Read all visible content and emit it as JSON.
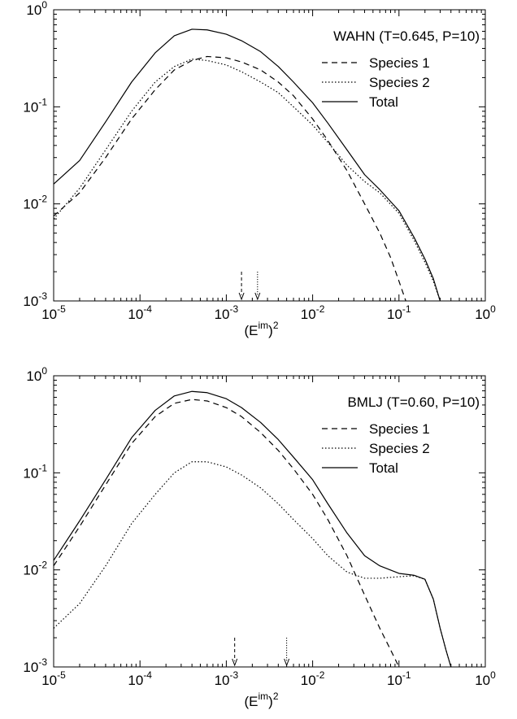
{
  "chart_data": [
    {
      "type": "line",
      "title": "WAHN (T=0.645, P=10)",
      "xlabel": "(E^im)^2",
      "xlabel_base": "(E",
      "xlabel_sup": "im",
      "xlabel_close": ")",
      "xlabel_exp": "2",
      "xscale": "log",
      "yscale": "log",
      "xlim": [
        1e-05,
        1
      ],
      "ylim": [
        0.001,
        1
      ],
      "xticks": [
        {
          "value": 1e-05,
          "base": "10",
          "exp": "-5"
        },
        {
          "value": 0.0001,
          "base": "10",
          "exp": "-4"
        },
        {
          "value": 0.001,
          "base": "10",
          "exp": "-3"
        },
        {
          "value": 0.01,
          "base": "10",
          "exp": "-2"
        },
        {
          "value": 0.1,
          "base": "10",
          "exp": "-1"
        },
        {
          "value": 1,
          "base": "10",
          "exp": "0"
        }
      ],
      "yticks": [
        {
          "value": 0.001,
          "base": "10",
          "exp": "-3"
        },
        {
          "value": 0.01,
          "base": "10",
          "exp": "-2"
        },
        {
          "value": 0.1,
          "base": "10",
          "exp": "-1"
        },
        {
          "value": 1,
          "base": "10",
          "exp": "0"
        }
      ],
      "legend_position": "top-right",
      "series": [
        {
          "name": "Species 1",
          "style": "dashed",
          "x": [
            1e-05,
            2e-05,
            4e-05,
            8e-05,
            0.00015,
            0.00025,
            0.0004,
            0.0006,
            0.001,
            0.0015,
            0.0025,
            0.004,
            0.006,
            0.01,
            0.015,
            0.025,
            0.04,
            0.06,
            0.08,
            0.1,
            0.12
          ],
          "y": [
            0.0075,
            0.013,
            0.03,
            0.075,
            0.15,
            0.24,
            0.3,
            0.33,
            0.32,
            0.29,
            0.24,
            0.18,
            0.13,
            0.075,
            0.045,
            0.022,
            0.01,
            0.005,
            0.0028,
            0.0016,
            0.001
          ]
        },
        {
          "name": "Species 2",
          "style": "dotted",
          "x": [
            1e-05,
            2e-05,
            4e-05,
            8e-05,
            0.00015,
            0.00025,
            0.0004,
            0.0006,
            0.001,
            0.0015,
            0.0025,
            0.004,
            0.006,
            0.01,
            0.015,
            0.025,
            0.04,
            0.06,
            0.1,
            0.15,
            0.2,
            0.25,
            0.3
          ],
          "y": [
            0.007,
            0.0145,
            0.036,
            0.09,
            0.18,
            0.26,
            0.31,
            0.3,
            0.27,
            0.23,
            0.18,
            0.14,
            0.1,
            0.065,
            0.043,
            0.025,
            0.017,
            0.013,
            0.008,
            0.0042,
            0.0025,
            0.0016,
            0.001
          ]
        },
        {
          "name": "Total",
          "style": "solid",
          "x": [
            1e-05,
            2e-05,
            4e-05,
            8e-05,
            0.00015,
            0.00025,
            0.0004,
            0.0006,
            0.001,
            0.0015,
            0.0025,
            0.004,
            0.006,
            0.01,
            0.015,
            0.025,
            0.04,
            0.06,
            0.1,
            0.15,
            0.2,
            0.25,
            0.3
          ],
          "y": [
            0.016,
            0.028,
            0.07,
            0.18,
            0.36,
            0.54,
            0.63,
            0.62,
            0.56,
            0.48,
            0.37,
            0.26,
            0.18,
            0.11,
            0.068,
            0.036,
            0.02,
            0.014,
            0.0085,
            0.0045,
            0.0027,
            0.0017,
            0.001
          ]
        }
      ],
      "annotations": [
        {
          "type": "arrow",
          "style": "dashed",
          "x": 0.0015
        },
        {
          "type": "arrow",
          "style": "dotted",
          "x": 0.0023
        }
      ]
    },
    {
      "type": "line",
      "title": "BMLJ (T=0.60, P=10)",
      "xlabel": "(E^im)^2",
      "xlabel_base": "(E",
      "xlabel_sup": "im",
      "xlabel_close": ")",
      "xlabel_exp": "2",
      "xscale": "log",
      "yscale": "log",
      "xlim": [
        1e-05,
        1
      ],
      "ylim": [
        0.001,
        1
      ],
      "xticks": [
        {
          "value": 1e-05,
          "base": "10",
          "exp": "-5"
        },
        {
          "value": 0.0001,
          "base": "10",
          "exp": "-4"
        },
        {
          "value": 0.001,
          "base": "10",
          "exp": "-3"
        },
        {
          "value": 0.01,
          "base": "10",
          "exp": "-2"
        },
        {
          "value": 0.1,
          "base": "10",
          "exp": "-1"
        },
        {
          "value": 1,
          "base": "10",
          "exp": "0"
        }
      ],
      "yticks": [
        {
          "value": 0.001,
          "base": "10",
          "exp": "-3"
        },
        {
          "value": 0.01,
          "base": "10",
          "exp": "-2"
        },
        {
          "value": 0.1,
          "base": "10",
          "exp": "-1"
        },
        {
          "value": 1,
          "base": "10",
          "exp": "0"
        }
      ],
      "legend_position": "top-right",
      "series": [
        {
          "name": "Species 1",
          "style": "dashed",
          "x": [
            1e-05,
            2e-05,
            4e-05,
            8e-05,
            0.00015,
            0.00025,
            0.0004,
            0.0006,
            0.001,
            0.0015,
            0.0025,
            0.004,
            0.006,
            0.01,
            0.015,
            0.025,
            0.04,
            0.06,
            0.08,
            0.1
          ],
          "y": [
            0.011,
            0.028,
            0.075,
            0.2,
            0.38,
            0.52,
            0.57,
            0.55,
            0.47,
            0.38,
            0.26,
            0.17,
            0.11,
            0.06,
            0.033,
            0.014,
            0.0055,
            0.0025,
            0.0015,
            0.001
          ]
        },
        {
          "name": "Species 2",
          "style": "dotted",
          "x": [
            1e-05,
            2e-05,
            4e-05,
            8e-05,
            0.00015,
            0.00025,
            0.0004,
            0.0006,
            0.001,
            0.0015,
            0.0025,
            0.004,
            0.006,
            0.01,
            0.015,
            0.025,
            0.04,
            0.06,
            0.1,
            0.15,
            0.2,
            0.25,
            0.3,
            0.35,
            0.4
          ],
          "y": [
            0.0025,
            0.0045,
            0.011,
            0.03,
            0.06,
            0.1,
            0.13,
            0.13,
            0.115,
            0.095,
            0.07,
            0.048,
            0.033,
            0.021,
            0.014,
            0.0095,
            0.0082,
            0.0082,
            0.0085,
            0.0087,
            0.008,
            0.005,
            0.0025,
            0.0015,
            0.001
          ]
        },
        {
          "name": "Total",
          "style": "solid",
          "x": [
            1e-05,
            2e-05,
            4e-05,
            8e-05,
            0.00015,
            0.00025,
            0.0004,
            0.0006,
            0.001,
            0.0015,
            0.0025,
            0.004,
            0.006,
            0.01,
            0.015,
            0.025,
            0.04,
            0.06,
            0.1,
            0.15,
            0.2,
            0.25,
            0.3,
            0.35,
            0.4
          ],
          "y": [
            0.0125,
            0.032,
            0.085,
            0.23,
            0.44,
            0.62,
            0.69,
            0.67,
            0.58,
            0.47,
            0.33,
            0.22,
            0.145,
            0.085,
            0.048,
            0.024,
            0.014,
            0.011,
            0.0092,
            0.0088,
            0.008,
            0.005,
            0.0025,
            0.0015,
            0.001
          ]
        }
      ],
      "annotations": [
        {
          "type": "arrow",
          "style": "dashed",
          "x": 0.00125
        },
        {
          "type": "arrow",
          "style": "dotted",
          "x": 0.005
        }
      ]
    }
  ]
}
